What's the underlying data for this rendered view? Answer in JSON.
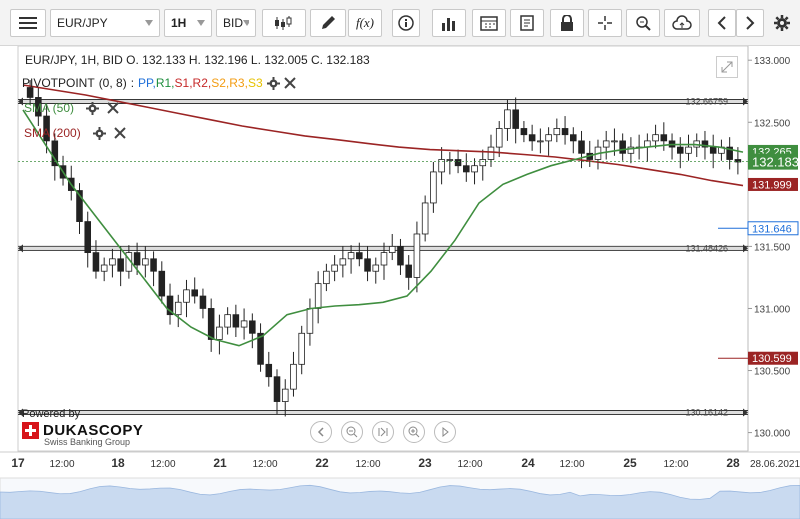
{
  "toolbar": {
    "symbol": "EUR/JPY",
    "timeframe": "1H",
    "side": "BID",
    "func_label": "f(x)"
  },
  "readout": "EUR/JPY, 1H, BID   O. 132.133 H. 132.196 L. 132.005 C. 132.183",
  "indicators": {
    "pivot": {
      "name": "PIVOTPOINT",
      "params": "(0, 8)",
      "sep": ":",
      "legend": [
        {
          "label": "PP",
          "color": "#1e6fd9"
        },
        {
          "label": "R1",
          "color": "#1e8e3e"
        },
        {
          "label": "S1",
          "color": "#c62828"
        },
        {
          "label": "R2",
          "color": "#c62828"
        },
        {
          "label": "S2",
          "color": "#f39c12"
        },
        {
          "label": "R3",
          "color": "#f39c12"
        },
        {
          "label": "S3",
          "color": "#e6c200"
        }
      ]
    },
    "sma50": {
      "label": "SMA (50)",
      "color": "#3f8e3f"
    },
    "sma200": {
      "label": "SMA (200)",
      "color": "#9b2424"
    }
  },
  "logo": {
    "powered": "Powered by",
    "brand": "DUKASCOPY",
    "sub": "Swiss Banking Group"
  },
  "chart_data": {
    "type": "candlestick",
    "symbol": "EUR/JPY",
    "interval": "1H",
    "ylim": [
      129.9,
      133.05
    ],
    "y_ticks": [
      "133.000",
      "132.500",
      "131.500",
      "131.000",
      "130.500",
      "130.000"
    ],
    "x_ticks": [
      "17",
      "12:00",
      "18",
      "12:00",
      "21",
      "12:00",
      "22",
      "12:00",
      "23",
      "12:00",
      "24",
      "12:00",
      "25",
      "12:00",
      "28",
      "28.06.2021"
    ],
    "pivot_levels": [
      {
        "label": "132.66759",
        "value": 132.66759
      },
      {
        "label": "131.48426",
        "value": 131.48426
      },
      {
        "label": "130.16142",
        "value": 130.16142
      }
    ],
    "price_labels": [
      {
        "text": "132.265",
        "value": 132.265,
        "color": "#3f8e3f"
      },
      {
        "text": "132.183",
        "value": 132.183,
        "color": "#3f8e3f"
      },
      {
        "text": "131.999",
        "value": 131.999,
        "color": "#9b2424"
      },
      {
        "text": "131.646",
        "value": 131.646,
        "color": "#1e6fd9"
      },
      {
        "text": "130.599",
        "value": 130.599,
        "color": "#9b2424"
      }
    ],
    "last_price": 132.183,
    "closes": [
      132.7,
      132.55,
      132.35,
      132.15,
      132.05,
      131.95,
      131.7,
      131.45,
      131.3,
      131.35,
      131.4,
      131.3,
      131.45,
      131.35,
      131.4,
      131.3,
      131.1,
      130.95,
      131.05,
      131.15,
      131.1,
      131.0,
      130.75,
      130.85,
      130.95,
      130.85,
      130.9,
      130.8,
      130.55,
      130.45,
      130.25,
      130.35,
      130.55,
      130.8,
      131.0,
      131.2,
      131.3,
      131.35,
      131.4,
      131.45,
      131.4,
      131.3,
      131.35,
      131.45,
      131.5,
      131.35,
      131.25,
      131.6,
      131.85,
      132.1,
      132.2,
      132.2,
      132.15,
      132.1,
      132.15,
      132.2,
      132.3,
      132.45,
      132.6,
      132.45,
      132.4,
      132.35,
      132.35,
      132.4,
      132.45,
      132.4,
      132.35,
      132.25,
      132.2,
      132.3,
      132.35,
      132.35,
      132.25,
      132.3,
      132.3,
      132.35,
      132.4,
      132.35,
      132.3,
      132.25,
      132.3,
      132.35,
      132.3,
      132.25,
      132.3,
      132.2,
      132.18
    ],
    "sma50": [
      132.6,
      132.3,
      132.0,
      131.75,
      131.5,
      131.25,
      131.0,
      130.85,
      130.75,
      130.7,
      130.78,
      130.95,
      131.0,
      131.02,
      131.03,
      131.05,
      131.1,
      131.3,
      131.55,
      131.85,
      132.0,
      132.08,
      132.15,
      132.2,
      132.25,
      132.28,
      132.3,
      132.32,
      132.32,
      132.3,
      132.26
    ],
    "sma200": [
      132.8,
      132.76,
      132.72,
      132.67,
      132.62,
      132.57,
      132.52,
      132.47,
      132.43,
      132.39,
      132.36,
      132.33,
      132.3,
      132.28,
      132.27,
      132.26,
      132.24,
      132.22,
      132.19,
      132.16,
      132.12,
      132.08,
      132.03,
      131.99
    ],
    "overview_dates": [
      "28.06.2021"
    ]
  }
}
